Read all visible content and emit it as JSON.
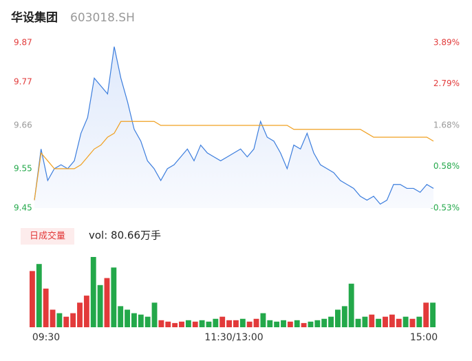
{
  "chart_data": {
    "type": "intraday",
    "title": "华设集团",
    "subtitle": "603018.SH",
    "volume_label": "日成交量",
    "volume_text": "vol: 80.66万手",
    "x_labels": [
      "09:30",
      "11:30/13:00",
      "15:00"
    ],
    "ylim": [
      9.45,
      9.87
    ],
    "yticks": [
      9.87,
      9.77,
      9.66,
      9.55,
      9.45
    ],
    "y2lim": [
      -0.53,
      3.89
    ],
    "y2ticks": [
      {
        "value": 3.89,
        "label": "3.89%"
      },
      {
        "value": 2.79,
        "label": "2.79%"
      },
      {
        "value": 1.68,
        "label": "1.68%"
      },
      {
        "value": 0.58,
        "label": "0.58%"
      },
      {
        "value": -0.53,
        "label": "-0.53%"
      }
    ],
    "series": [
      {
        "name": "price",
        "color": "#3b7ddd",
        "values": [
          9.47,
          9.6,
          9.52,
          9.55,
          9.56,
          9.55,
          9.57,
          9.64,
          9.68,
          9.78,
          9.76,
          9.74,
          9.86,
          9.78,
          9.72,
          9.65,
          9.62,
          9.57,
          9.55,
          9.52,
          9.55,
          9.56,
          9.58,
          9.6,
          9.57,
          9.61,
          9.59,
          9.58,
          9.57,
          9.58,
          9.59,
          9.6,
          9.58,
          9.6,
          9.67,
          9.63,
          9.62,
          9.59,
          9.55,
          9.61,
          9.6,
          9.64,
          9.59,
          9.56,
          9.55,
          9.54,
          9.52,
          9.51,
          9.5,
          9.48,
          9.47,
          9.48,
          9.46,
          9.47,
          9.51,
          9.51,
          9.5,
          9.5,
          9.49,
          9.51,
          9.5
        ]
      },
      {
        "name": "average",
        "color": "#f0a020",
        "values": [
          9.47,
          9.59,
          9.57,
          9.55,
          9.55,
          9.55,
          9.55,
          9.56,
          9.58,
          9.6,
          9.61,
          9.63,
          9.64,
          9.67,
          9.67,
          9.67,
          9.67,
          9.67,
          9.67,
          9.66,
          9.66,
          9.66,
          9.66,
          9.66,
          9.66,
          9.66,
          9.66,
          9.66,
          9.66,
          9.66,
          9.66,
          9.66,
          9.66,
          9.66,
          9.66,
          9.66,
          9.66,
          9.66,
          9.66,
          9.65,
          9.65,
          9.65,
          9.65,
          9.65,
          9.65,
          9.65,
          9.65,
          9.65,
          9.65,
          9.65,
          9.64,
          9.63,
          9.63,
          9.63,
          9.63,
          9.63,
          9.63,
          9.63,
          9.63,
          9.63,
          9.62
        ]
      }
    ],
    "volume": [
      80,
      90,
      55,
      25,
      20,
      15,
      20,
      35,
      45,
      100,
      60,
      70,
      85,
      30,
      25,
      20,
      18,
      15,
      35,
      10,
      8,
      6,
      8,
      10,
      8,
      10,
      8,
      12,
      15,
      10,
      10,
      12,
      8,
      12,
      20,
      10,
      8,
      10,
      8,
      10,
      6,
      8,
      10,
      12,
      15,
      25,
      30,
      62,
      12,
      15,
      18,
      12,
      15,
      18,
      12,
      15,
      12,
      15,
      35,
      35
    ],
    "volume_ylim": [
      0,
      100
    ],
    "up_color": "#e23a3a",
    "down_color": "#23a84a"
  }
}
